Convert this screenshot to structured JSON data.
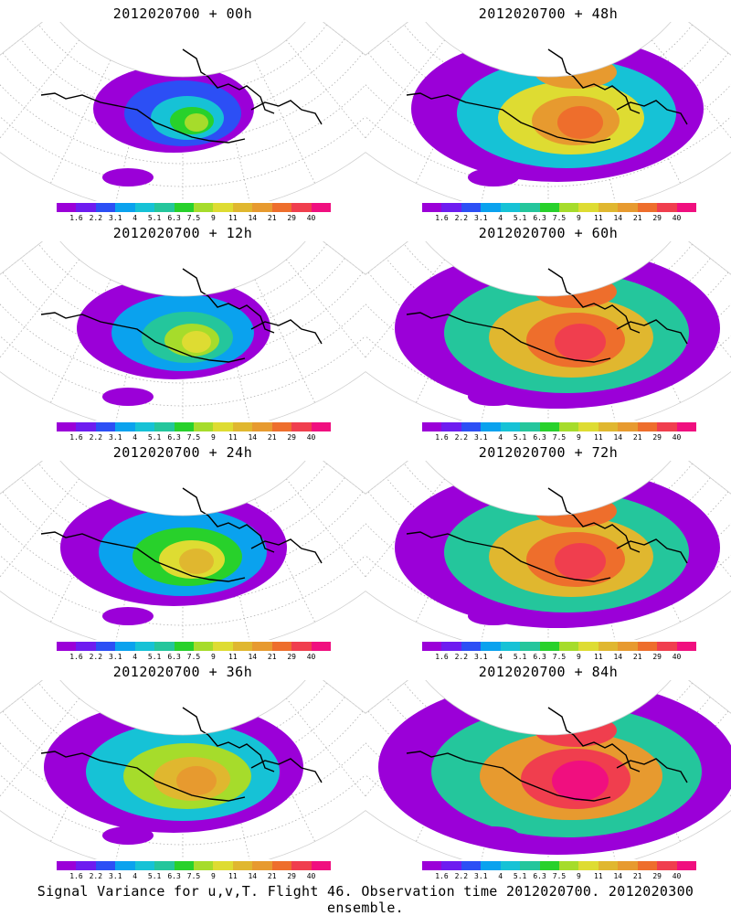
{
  "colorbar": {
    "colors": [
      "#9b00d8",
      "#6e1cf0",
      "#2c4ff5",
      "#0aa2ee",
      "#16c2d6",
      "#24c69c",
      "#28d12b",
      "#a6dc2b",
      "#dedc32",
      "#e0b72f",
      "#e79a2f",
      "#ee6e2c",
      "#f03e4e",
      "#f00f7f"
    ],
    "labels": [
      "1.6",
      "2.2",
      "3.1",
      "4",
      "5.1",
      "6.3",
      "7.5",
      "9",
      "11",
      "14",
      "21",
      "29",
      "40"
    ]
  },
  "panels": [
    {
      "title": "2012020700 + 00h",
      "level": 1
    },
    {
      "title": "2012020700 + 48h",
      "level": 5
    },
    {
      "title": "2012020700 + 12h",
      "level": 2
    },
    {
      "title": "2012020700 + 60h",
      "level": 6
    },
    {
      "title": "2012020700 + 24h",
      "level": 3
    },
    {
      "title": "2012020700 + 72h",
      "level": 6
    },
    {
      "title": "2012020700 + 36h",
      "level": 4
    },
    {
      "title": "2012020700 + 84h",
      "level": 7
    }
  ],
  "caption": "Signal Variance for u,v,T. Flight 46. Observation time 2012020700. 2012020300 ensemble."
}
